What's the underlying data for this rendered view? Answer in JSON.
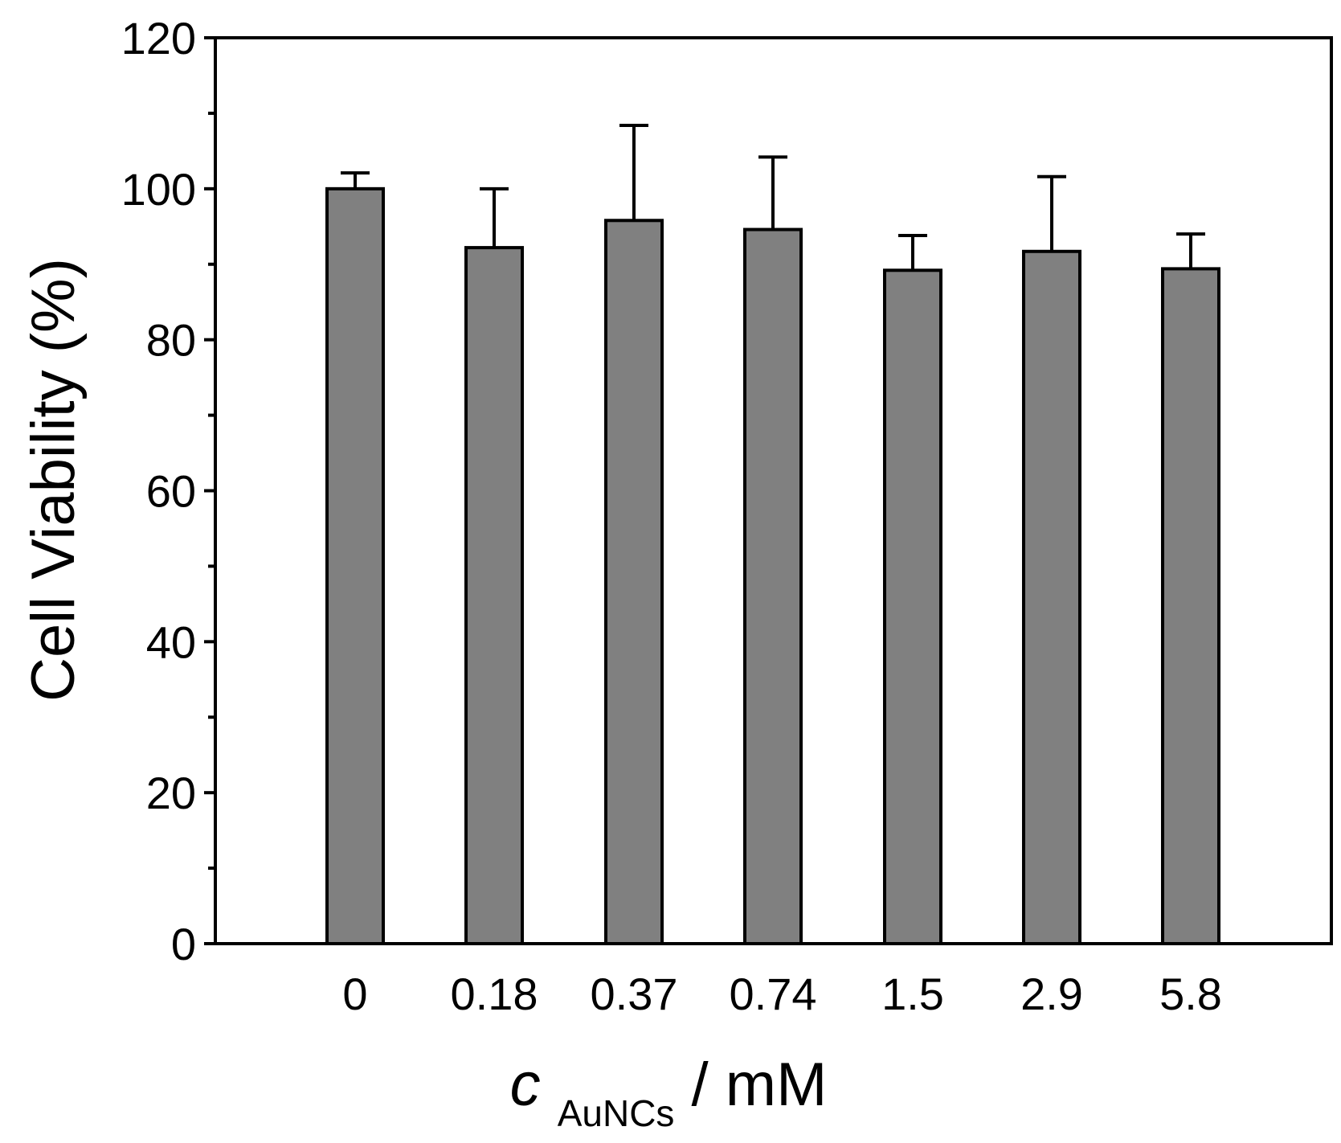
{
  "chart_data": {
    "type": "bar",
    "title": "",
    "categories": [
      "0",
      "0.18",
      "0.37",
      "0.74",
      "1.5",
      "2.9",
      "5.8"
    ],
    "values": [
      100,
      92.2,
      95.8,
      94.6,
      89.2,
      91.7,
      89.4
    ],
    "errors": [
      2.1,
      7.8,
      12.6,
      9.6,
      4.6,
      9.9,
      4.6
    ],
    "ylabel": "Cell Viability (%)",
    "xlabel": {
      "symbol": "c",
      "subscript": "AuNCs",
      "unit": " / mM"
    },
    "ylim": [
      0,
      120
    ],
    "yticks": [
      0,
      20,
      40,
      60,
      80,
      100,
      120
    ],
    "y_minor_step": 10,
    "grid": false,
    "bar_color": "#808080",
    "edge_color": "#000000"
  }
}
